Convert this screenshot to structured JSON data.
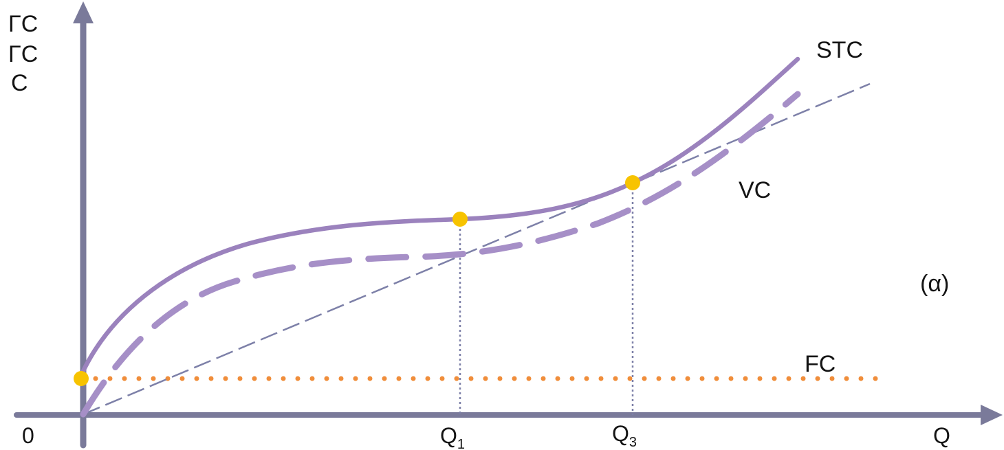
{
  "diagram": {
    "y_axis_label_lines": [
      "ΓC",
      "ΓC",
      "C"
    ],
    "x_axis_label": "Q",
    "origin_label": "0",
    "curves": {
      "stc": "STC",
      "vc": "VC",
      "fc": "FC"
    },
    "x_ticks": [
      {
        "main": "Q",
        "sub": "1"
      },
      {
        "main": "Q",
        "sub": "3"
      }
    ],
    "panel_tag": "(α)",
    "colors": {
      "axis": "#7a7a9a",
      "stc": "#9b82bd",
      "vc": "#a68fc7",
      "ray": "#7d80a8",
      "fc": "#f08d3a",
      "point": "#f7c300",
      "guide": "#7d80a8"
    }
  }
}
